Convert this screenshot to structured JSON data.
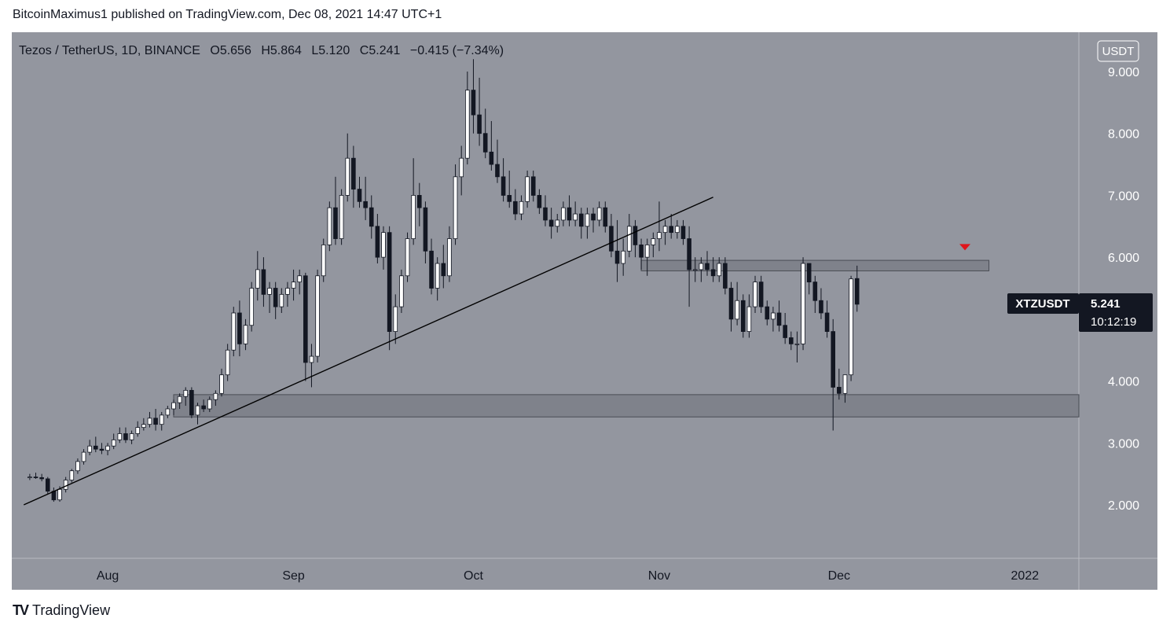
{
  "header": {
    "published": "BitcoinMaximus1 published on TradingView.com, Dec 08, 2021 14:47 UTC+1"
  },
  "legend": {
    "symbol": "Tezos / TetherUS, 1D, BINANCE",
    "o_label": "O",
    "o": "5.656",
    "h_label": "H",
    "h": "5.864",
    "l_label": "L",
    "l": "5.120",
    "c_label": "C",
    "c": "5.241",
    "change": "−0.415 (−7.34%)"
  },
  "currency_badge": "USDT",
  "price_tag": {
    "symbol": "XTZUSDT",
    "price": "5.241",
    "countdown": "10:12:19"
  },
  "footer": {
    "logo": "TV",
    "brand": "TradingView"
  },
  "colors": {
    "background": "#93969f",
    "up": "#ffffff",
    "down": "#131722",
    "marker": "#e0151b",
    "zone": "#6f727a"
  },
  "chart_data": {
    "type": "candlestick",
    "ylim": [
      1.0,
      9.6
    ],
    "y_ticks": [
      "2.000",
      "3.000",
      "4.000",
      "5.000",
      "6.000",
      "7.000",
      "8.000",
      "9.000"
    ],
    "x_ticks": [
      {
        "label": "Aug",
        "day": 13
      },
      {
        "label": "Sep",
        "day": 44
      },
      {
        "label": "Oct",
        "day": 74
      },
      {
        "label": "Nov",
        "day": 105
      },
      {
        "label": "Dec",
        "day": 135
      },
      {
        "label": "2022",
        "day": 166
      }
    ],
    "day_range": [
      -3,
      175
    ],
    "candles": [
      [
        2.45,
        2.5,
        2.4,
        2.45
      ],
      [
        2.45,
        2.52,
        2.42,
        2.44
      ],
      [
        2.44,
        2.5,
        2.38,
        2.42
      ],
      [
        2.42,
        2.45,
        2.18,
        2.22
      ],
      [
        2.22,
        2.28,
        2.05,
        2.08
      ],
      [
        2.08,
        2.3,
        2.05,
        2.25
      ],
      [
        2.25,
        2.45,
        2.2,
        2.4
      ],
      [
        2.4,
        2.58,
        2.36,
        2.55
      ],
      [
        2.55,
        2.75,
        2.5,
        2.7
      ],
      [
        2.7,
        2.9,
        2.65,
        2.85
      ],
      [
        2.85,
        3.05,
        2.8,
        2.95
      ],
      [
        2.95,
        3.1,
        2.85,
        2.9
      ],
      [
        2.9,
        3.0,
        2.82,
        2.88
      ],
      [
        2.88,
        3.0,
        2.8,
        2.95
      ],
      [
        2.95,
        3.15,
        2.9,
        3.05
      ],
      [
        3.05,
        3.25,
        3.0,
        3.15
      ],
      [
        3.15,
        3.25,
        3.0,
        3.05
      ],
      [
        3.05,
        3.2,
        2.98,
        3.15
      ],
      [
        3.15,
        3.35,
        3.1,
        3.25
      ],
      [
        3.25,
        3.4,
        3.2,
        3.3
      ],
      [
        3.3,
        3.5,
        3.25,
        3.4
      ],
      [
        3.4,
        3.55,
        3.2,
        3.3
      ],
      [
        3.3,
        3.5,
        3.2,
        3.45
      ],
      [
        3.45,
        3.6,
        3.4,
        3.55
      ],
      [
        3.55,
        3.7,
        3.45,
        3.65
      ],
      [
        3.65,
        3.8,
        3.55,
        3.75
      ],
      [
        3.75,
        3.9,
        3.6,
        3.85
      ],
      [
        3.85,
        3.9,
        3.4,
        3.45
      ],
      [
        3.45,
        3.65,
        3.3,
        3.6
      ],
      [
        3.6,
        3.7,
        3.5,
        3.55
      ],
      [
        3.55,
        3.75,
        3.5,
        3.7
      ],
      [
        3.7,
        3.85,
        3.6,
        3.8
      ],
      [
        3.8,
        4.2,
        3.75,
        4.1
      ],
      [
        4.1,
        4.6,
        4.0,
        4.5
      ],
      [
        4.5,
        5.2,
        4.4,
        5.1
      ],
      [
        5.1,
        5.3,
        4.4,
        4.6
      ],
      [
        4.6,
        5.0,
        4.5,
        4.9
      ],
      [
        4.9,
        5.6,
        4.8,
        5.5
      ],
      [
        5.5,
        6.1,
        5.3,
        5.8
      ],
      [
        5.8,
        6.0,
        5.2,
        5.4
      ],
      [
        5.4,
        5.6,
        5.1,
        5.5
      ],
      [
        5.5,
        5.6,
        5.0,
        5.2
      ],
      [
        5.2,
        5.5,
        5.1,
        5.4
      ],
      [
        5.4,
        5.6,
        5.2,
        5.5
      ],
      [
        5.5,
        5.8,
        5.3,
        5.6
      ],
      [
        5.6,
        5.8,
        5.4,
        5.7
      ],
      [
        5.7,
        5.75,
        4.0,
        4.3
      ],
      [
        4.3,
        4.6,
        3.9,
        4.4
      ],
      [
        4.4,
        5.8,
        4.3,
        5.7
      ],
      [
        5.7,
        6.3,
        5.6,
        6.2
      ],
      [
        6.2,
        6.9,
        6.1,
        6.8
      ],
      [
        6.8,
        7.3,
        6.2,
        6.3
      ],
      [
        6.3,
        7.1,
        6.2,
        7.0
      ],
      [
        7.0,
        8.0,
        6.9,
        7.6
      ],
      [
        7.6,
        7.8,
        6.8,
        7.1
      ],
      [
        7.1,
        7.3,
        6.8,
        6.9
      ],
      [
        6.9,
        7.3,
        6.6,
        6.8
      ],
      [
        6.8,
        7.0,
        6.3,
        6.5
      ],
      [
        6.5,
        6.7,
        5.9,
        6.0
      ],
      [
        6.0,
        6.5,
        5.8,
        6.4
      ],
      [
        6.4,
        6.5,
        4.5,
        4.8
      ],
      [
        4.8,
        5.4,
        4.6,
        5.2
      ],
      [
        5.2,
        5.8,
        5.1,
        5.7
      ],
      [
        5.7,
        6.4,
        5.6,
        6.3
      ],
      [
        6.3,
        7.6,
        6.2,
        7.0
      ],
      [
        7.0,
        7.2,
        6.5,
        6.8
      ],
      [
        6.8,
        6.9,
        5.9,
        6.1
      ],
      [
        6.1,
        6.3,
        5.4,
        5.5
      ],
      [
        5.5,
        6.0,
        5.3,
        5.9
      ],
      [
        5.9,
        6.2,
        5.5,
        5.7
      ],
      [
        5.7,
        6.5,
        5.6,
        6.3
      ],
      [
        6.3,
        7.5,
        6.2,
        7.3
      ],
      [
        7.3,
        7.8,
        7.0,
        7.6
      ],
      [
        7.6,
        9.0,
        7.5,
        8.7
      ],
      [
        8.7,
        9.2,
        8.0,
        8.3
      ],
      [
        8.3,
        8.9,
        7.8,
        8.0
      ],
      [
        8.0,
        8.4,
        7.6,
        7.7
      ],
      [
        7.7,
        8.2,
        7.4,
        7.5
      ],
      [
        7.5,
        7.9,
        7.2,
        7.3
      ],
      [
        7.3,
        7.6,
        6.9,
        7.0
      ],
      [
        7.0,
        7.4,
        6.8,
        6.9
      ],
      [
        6.9,
        7.1,
        6.6,
        6.7
      ],
      [
        6.7,
        7.0,
        6.6,
        6.9
      ],
      [
        6.9,
        7.4,
        6.8,
        7.3
      ],
      [
        7.3,
        7.4,
        6.9,
        7.0
      ],
      [
        7.0,
        7.1,
        6.7,
        6.8
      ],
      [
        6.8,
        7.0,
        6.5,
        6.6
      ],
      [
        6.6,
        6.8,
        6.3,
        6.5
      ],
      [
        6.5,
        6.7,
        6.4,
        6.6
      ],
      [
        6.6,
        6.9,
        6.5,
        6.8
      ],
      [
        6.8,
        7.0,
        6.5,
        6.6
      ],
      [
        6.6,
        6.9,
        6.5,
        6.7
      ],
      [
        6.7,
        6.8,
        6.3,
        6.5
      ],
      [
        6.5,
        6.8,
        6.3,
        6.7
      ],
      [
        6.7,
        6.8,
        6.4,
        6.6
      ],
      [
        6.6,
        6.9,
        6.5,
        6.8
      ],
      [
        6.8,
        6.9,
        6.4,
        6.5
      ],
      [
        6.5,
        6.7,
        6.0,
        6.1
      ],
      [
        6.1,
        6.6,
        5.6,
        5.9
      ],
      [
        5.9,
        6.3,
        5.7,
        6.1
      ],
      [
        6.1,
        6.7,
        6.0,
        6.5
      ],
      [
        6.5,
        6.6,
        6.0,
        6.2
      ],
      [
        6.2,
        6.3,
        5.8,
        6.0
      ],
      [
        6.0,
        6.3,
        5.7,
        6.2
      ],
      [
        6.2,
        6.4,
        6.0,
        6.3
      ],
      [
        6.3,
        6.9,
        6.1,
        6.4
      ],
      [
        6.4,
        6.6,
        6.2,
        6.5
      ],
      [
        6.5,
        6.7,
        6.3,
        6.4
      ],
      [
        6.4,
        6.6,
        6.3,
        6.5
      ],
      [
        6.5,
        6.6,
        6.2,
        6.3
      ],
      [
        6.3,
        6.5,
        5.2,
        5.8
      ],
      [
        5.8,
        6.0,
        5.6,
        5.8
      ],
      [
        5.8,
        6.0,
        5.6,
        5.9
      ],
      [
        5.9,
        6.1,
        5.7,
        5.8
      ],
      [
        5.8,
        6.0,
        5.6,
        5.7
      ],
      [
        5.7,
        6.0,
        5.6,
        5.9
      ],
      [
        5.9,
        6.0,
        5.4,
        5.5
      ],
      [
        5.5,
        5.6,
        4.8,
        5.0
      ],
      [
        5.0,
        5.6,
        4.9,
        5.3
      ],
      [
        5.3,
        5.4,
        4.7,
        4.8
      ],
      [
        4.8,
        5.4,
        4.7,
        5.2
      ],
      [
        5.2,
        5.7,
        5.1,
        5.6
      ],
      [
        5.6,
        5.7,
        5.1,
        5.2
      ],
      [
        5.2,
        5.3,
        4.9,
        5.0
      ],
      [
        5.0,
        5.2,
        4.8,
        5.1
      ],
      [
        5.1,
        5.3,
        4.8,
        4.9
      ],
      [
        4.9,
        5.1,
        4.6,
        4.7
      ],
      [
        4.7,
        4.8,
        4.5,
        4.6
      ],
      [
        4.6,
        4.8,
        4.3,
        4.6
      ],
      [
        4.6,
        6.0,
        4.5,
        5.9
      ],
      [
        5.9,
        5.9,
        5.4,
        5.6
      ],
      [
        5.6,
        5.7,
        5.1,
        5.3
      ],
      [
        5.3,
        5.5,
        5.0,
        5.1
      ],
      [
        5.1,
        5.3,
        4.7,
        4.8
      ],
      [
        4.8,
        5.0,
        3.2,
        3.9
      ],
      [
        3.9,
        4.2,
        3.7,
        3.8
      ],
      [
        3.8,
        4.1,
        3.65,
        4.1
      ],
      [
        4.1,
        5.7,
        4.0,
        5.65
      ],
      [
        5.656,
        5.864,
        5.12,
        5.241
      ]
    ],
    "trendline": {
      "start": {
        "day": -1,
        "price": 2.0
      },
      "end": {
        "day": 114,
        "price": 6.97
      }
    },
    "zones": [
      {
        "from_day": 24,
        "to_day": 175,
        "low": 3.42,
        "high": 3.78
      },
      {
        "from_day": 102,
        "to_day": 160,
        "low": 5.78,
        "high": 5.95
      }
    ],
    "marker": {
      "day": 156,
      "price": 6.15,
      "shape": "down-triangle"
    }
  }
}
